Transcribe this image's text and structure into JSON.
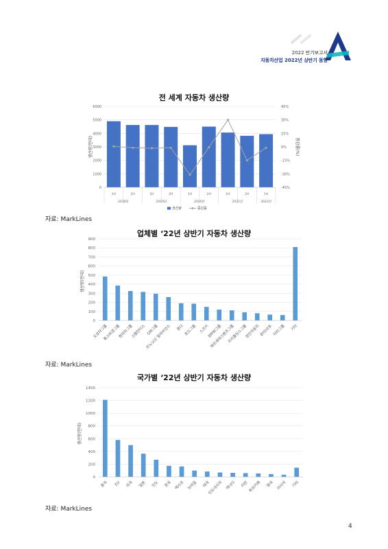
{
  "header": {
    "line1": "2022 반기보고서",
    "line2": "자동차산업 2022년 상반기 동향",
    "logo": "A-logo",
    "brand_color": "#1d3a8a",
    "accent_color": "#14b8c4"
  },
  "page_number": "4",
  "sources": [
    "자료: MarkLines",
    "자료: MarkLines",
    "자료: MarkLines"
  ],
  "chart_data": [
    {
      "type": "bar",
      "title": "전 세계 자동차 생산량",
      "categories": [
        "1H",
        "2H",
        "1H",
        "2H",
        "1H",
        "2H",
        "1H",
        "2H",
        "1H"
      ],
      "year_groups": [
        {
          "label": "2018년",
          "span": 2
        },
        {
          "label": "2019년",
          "span": 2
        },
        {
          "label": "2020년",
          "span": 2
        },
        {
          "label": "2021년",
          "span": 2
        },
        {
          "label": "2022년",
          "span": 1
        }
      ],
      "series": [
        {
          "name": "생산량",
          "type": "bar",
          "axis": "left",
          "color": "#4472c4",
          "values": [
            4900,
            4620,
            4620,
            4480,
            3120,
            4500,
            4060,
            3820,
            3940
          ]
        },
        {
          "name": "증감률",
          "type": "line",
          "axis": "right",
          "color": "#a5a5a5",
          "values": [
            0.5,
            -1,
            -1.5,
            -1,
            -31,
            -0.5,
            30,
            -15,
            -1
          ]
        }
      ],
      "ylabel": "생산량(만대)",
      "y2label": "증감률(%)",
      "ylim": [
        0,
        6000
      ],
      "yticks": [
        0,
        1000,
        2000,
        3000,
        4000,
        5000,
        6000
      ],
      "y2lim": [
        -45,
        45
      ],
      "y2ticks": [
        "45%",
        "30%",
        "15%",
        "0%",
        "-15%",
        "-30%",
        "-45%"
      ],
      "legend": "bottom",
      "grid": true
    },
    {
      "type": "bar",
      "title": "업체별 ‘22년 상반기 자동차 생산량",
      "categories": [
        "도요타그룹",
        "폭스바겐그룹",
        "현대차그룹",
        "스텔란티스",
        "GM그룹",
        "르노닛산 얼라이언스",
        "혼다",
        "포드그룹",
        "스즈키",
        "BMW그룹",
        "메르세데스벤츠그룹",
        "지리홀딩스그룹",
        "장안자동차",
        "BYD오토",
        "타타그룹",
        "기타"
      ],
      "values": [
        485,
        385,
        325,
        315,
        295,
        258,
        190,
        185,
        150,
        120,
        112,
        90,
        80,
        65,
        60,
        810
      ],
      "ylabel": "생산량(만대)",
      "ylim": [
        0,
        900
      ],
      "yticks": [
        0,
        100,
        200,
        300,
        400,
        500,
        600,
        700,
        800,
        900
      ],
      "color": "#5b9bd5",
      "grid": true
    },
    {
      "type": "bar",
      "title": "국가별 ‘22년 상반기 자동차 생산량",
      "categories": [
        "중국",
        "EU",
        "미국",
        "일본",
        "인도",
        "한국",
        "멕시코",
        "브라질",
        "태국",
        "인도네시아",
        "캐나다",
        "이란",
        "튀르키예",
        "영국",
        "러시아",
        "기타"
      ],
      "values": [
        1210,
        580,
        500,
        365,
        270,
        175,
        165,
        100,
        85,
        70,
        65,
        60,
        55,
        45,
        35,
        145
      ],
      "ylabel": "생산량(만대)",
      "ylim": [
        0,
        1400
      ],
      "yticks": [
        0,
        200,
        400,
        600,
        800,
        1000,
        1200,
        1400
      ],
      "color": "#5b9bd5",
      "grid": true
    }
  ]
}
